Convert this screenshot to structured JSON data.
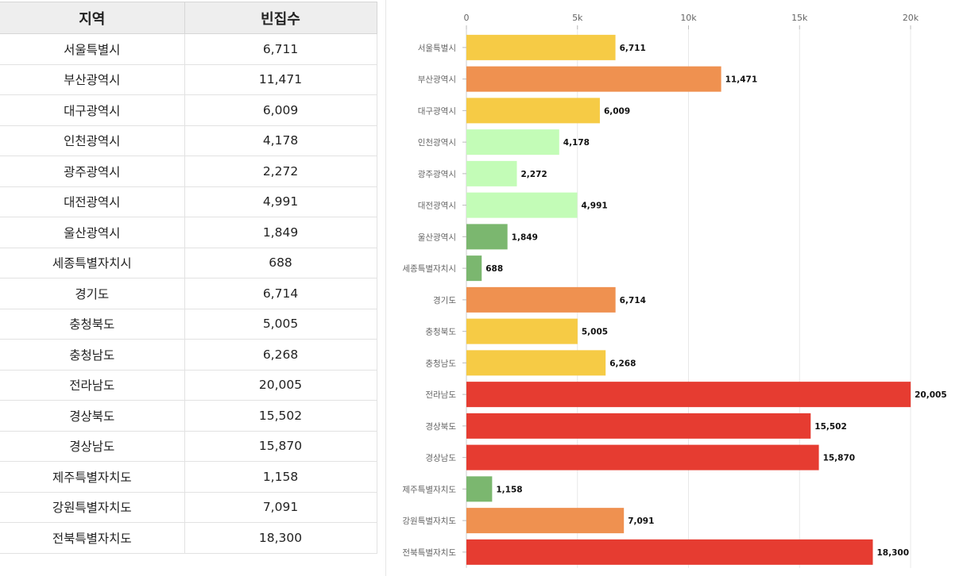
{
  "table": {
    "headers": [
      "지역",
      "빈집수"
    ],
    "rows": [
      [
        "서울특별시",
        "6,711"
      ],
      [
        "부산광역시",
        "11,471"
      ],
      [
        "대구광역시",
        "6,009"
      ],
      [
        "인천광역시",
        "4,178"
      ],
      [
        "광주광역시",
        "2,272"
      ],
      [
        "대전광역시",
        "4,991"
      ],
      [
        "울산광역시",
        "1,849"
      ],
      [
        "세종특별자치시",
        "688"
      ],
      [
        "경기도",
        "6,714"
      ],
      [
        "충청북도",
        "5,005"
      ],
      [
        "충청남도",
        "6,268"
      ],
      [
        "전라남도",
        "20,005"
      ],
      [
        "경상북도",
        "15,502"
      ],
      [
        "경상남도",
        "15,870"
      ],
      [
        "제주특별자치도",
        "1,158"
      ],
      [
        "강원특별자치도",
        "7,091"
      ],
      [
        "전북특별자치도",
        "18,300"
      ]
    ]
  },
  "chart_data": {
    "type": "bar",
    "orientation": "horizontal",
    "categories": [
      "서울특별시",
      "부산광역시",
      "대구광역시",
      "인천광역시",
      "광주광역시",
      "대전광역시",
      "울산광역시",
      "세종특별자치시",
      "경기도",
      "충청북도",
      "충청남도",
      "전라남도",
      "경상북도",
      "경상남도",
      "제주특별자치도",
      "강원특별자치도",
      "전북특별자치도"
    ],
    "values": [
      6711,
      11471,
      6009,
      4178,
      2272,
      4991,
      1849,
      688,
      6714,
      5005,
      6268,
      20005,
      15502,
      15870,
      1158,
      7091,
      18300
    ],
    "value_labels": [
      "6,711",
      "11,471",
      "6,009",
      "4,178",
      "2,272",
      "4,991",
      "1,849",
      "688",
      "6,714",
      "5,005",
      "6,268",
      "20,005",
      "15,502",
      "15,870",
      "1,158",
      "7,091",
      "18,300"
    ],
    "bar_colors": [
      "#f6cb45",
      "#ef9150",
      "#f6cb45",
      "#c3fcb7",
      "#c3fcb7",
      "#c3fcb7",
      "#7bb76f",
      "#7bb76f",
      "#ef9150",
      "#f6cb45",
      "#f6cb45",
      "#e63c31",
      "#e63c31",
      "#e63c31",
      "#7bb76f",
      "#ef9150",
      "#e63c31"
    ],
    "x_ticks": [
      0,
      5000,
      10000,
      15000,
      20000
    ],
    "x_tick_labels": [
      "0",
      "5k",
      "10k",
      "15k",
      "20k"
    ],
    "xlim": [
      0,
      20000
    ],
    "x_axis_position": "top",
    "grid": true,
    "title": "",
    "xlabel": "",
    "ylabel": ""
  }
}
